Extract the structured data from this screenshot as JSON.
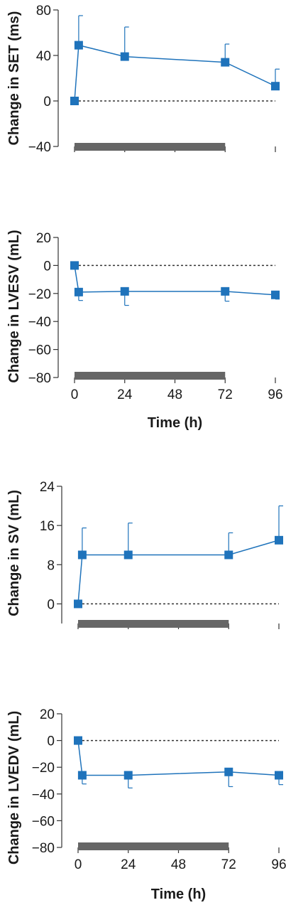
{
  "colors": {
    "series": "#1f73bb",
    "axis": "#333333",
    "bar": "#666666",
    "dotted": "#333333"
  },
  "chart_data": [
    {
      "type": "line",
      "ylabel": "Change in SET (ms)",
      "xlabel": "",
      "ylim": [
        -40,
        80
      ],
      "yticks": [
        "80",
        "40",
        "0",
        "−40"
      ],
      "ytick_values": [
        80,
        40,
        0,
        -40
      ],
      "xlim": [
        0,
        96
      ],
      "xticks": [
        0,
        24,
        48,
        72,
        96
      ],
      "xtick_labels_shown": false,
      "x": [
        0,
        2,
        24,
        72,
        96
      ],
      "y": [
        0,
        49,
        39,
        34,
        13
      ],
      "error_plus": [
        0,
        26,
        26,
        16,
        15
      ],
      "reference_line": 0,
      "treatment_bar": [
        0,
        72
      ]
    },
    {
      "type": "line",
      "ylabel": "Change in LVESV (mL)",
      "xlabel": "Time (h)",
      "ylim": [
        -80,
        20
      ],
      "yticks": [
        "20",
        "0",
        "−20",
        "−40",
        "−60",
        "−80"
      ],
      "ytick_values": [
        20,
        0,
        -20,
        -40,
        -60,
        -80
      ],
      "xlim": [
        0,
        96
      ],
      "xticks": [
        0,
        24,
        48,
        72,
        96
      ],
      "xtick_labels_shown": true,
      "xtick_labels": [
        "0",
        "24",
        "48",
        "72",
        "96"
      ],
      "x": [
        0,
        2,
        24,
        72,
        96
      ],
      "y": [
        0,
        -19,
        -18.5,
        -18.5,
        -21
      ],
      "error_minus": [
        0,
        6,
        10,
        7,
        3
      ],
      "reference_line": 0,
      "treatment_bar": [
        0,
        72
      ]
    },
    {
      "type": "line",
      "ylabel": "Change in SV (mL)",
      "xlabel": "",
      "ylim": [
        -4,
        24
      ],
      "yticks": [
        "24",
        "16",
        "8",
        "0"
      ],
      "ytick_values": [
        24,
        16,
        8,
        0
      ],
      "xlim": [
        0,
        96
      ],
      "xticks": [
        0,
        24,
        48,
        72,
        96
      ],
      "xtick_labels_shown": false,
      "x": [
        0,
        2,
        24,
        72,
        96
      ],
      "y": [
        0,
        10,
        10,
        10,
        13
      ],
      "error_plus": [
        0,
        5.5,
        6.5,
        4.5,
        7
      ],
      "reference_line": 0,
      "treatment_bar": [
        0,
        72
      ]
    },
    {
      "type": "line",
      "ylabel": "Change in LVEDV (mL)",
      "xlabel": "Time (h)",
      "ylim": [
        -80,
        20
      ],
      "yticks": [
        "20",
        "0",
        "−20",
        "−40",
        "−60",
        "−80"
      ],
      "ytick_values": [
        20,
        0,
        -20,
        -40,
        -60,
        -80
      ],
      "xlim": [
        0,
        96
      ],
      "xticks": [
        0,
        24,
        48,
        72,
        96
      ],
      "xtick_labels_shown": true,
      "xtick_labels": [
        "0",
        "24",
        "48",
        "72",
        "96"
      ],
      "x": [
        0,
        2,
        24,
        72,
        96
      ],
      "y": [
        0,
        -26,
        -26,
        -23.5,
        -26
      ],
      "error_minus": [
        0,
        6.5,
        9.5,
        11,
        7
      ],
      "reference_line": 0,
      "treatment_bar": [
        0,
        72
      ]
    }
  ]
}
